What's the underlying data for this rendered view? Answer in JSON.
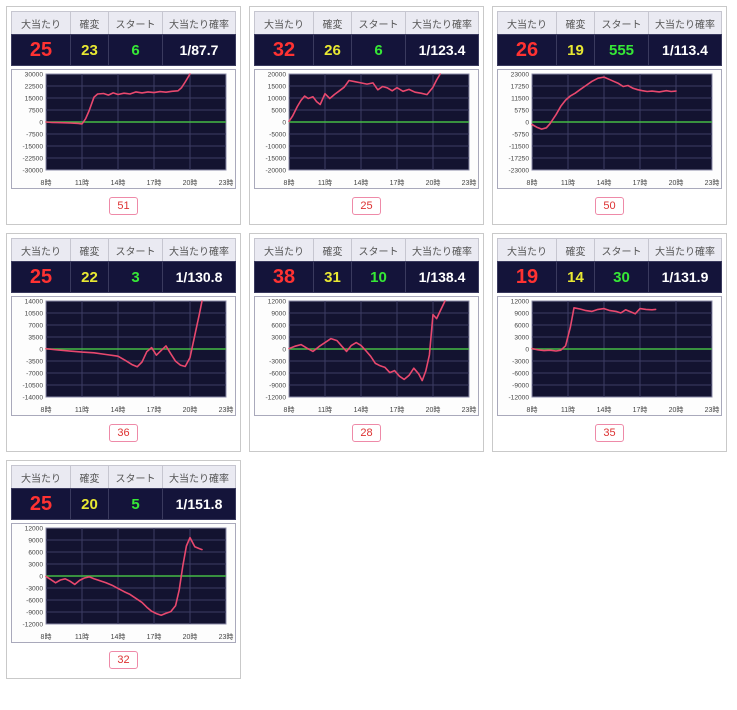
{
  "labels": {
    "jackpot": "大当たり",
    "kakuhen": "確変",
    "start": "スタート",
    "probability": "大当たり確率"
  },
  "x_ticks": [
    "8時",
    "11時",
    "14時",
    "17時",
    "20時",
    "23時"
  ],
  "colors": {
    "jackpot": "#ff3232",
    "kakuhen": "#e8e832",
    "start": "#36e836",
    "probability": "#ffffff",
    "dark_bg": "#14143a",
    "plot_bg": "#131330",
    "grid": "#3c3c64",
    "zero_line": "#44bb44",
    "line": "#e8486e",
    "badge_border": "#ee8aa8",
    "badge_text": "#dd3333"
  },
  "machines": [
    {
      "badge": "51",
      "jackpot": "25",
      "kakuhen": "23",
      "start": "6",
      "probability": "1/87.7"
    },
    {
      "badge": "25",
      "jackpot": "32",
      "kakuhen": "26",
      "start": "6",
      "probability": "1/123.4"
    },
    {
      "badge": "50",
      "jackpot": "26",
      "kakuhen": "19",
      "start": "555",
      "probability": "1/113.4"
    },
    {
      "badge": "36",
      "jackpot": "25",
      "kakuhen": "22",
      "start": "3",
      "probability": "1/130.8"
    },
    {
      "badge": "28",
      "jackpot": "38",
      "kakuhen": "31",
      "start": "10",
      "probability": "1/138.4"
    },
    {
      "badge": "35",
      "jackpot": "19",
      "kakuhen": "14",
      "start": "30",
      "probability": "1/131.9"
    },
    {
      "badge": "32",
      "jackpot": "25",
      "kakuhen": "20",
      "start": "5",
      "probability": "1/151.8"
    }
  ],
  "chart_data": [
    {
      "type": "line",
      "machine": "51",
      "x_range": [
        8,
        23
      ],
      "ylim": [
        -30000,
        30000
      ],
      "yticks": [
        30000,
        22500,
        15000,
        7500,
        0,
        -7500,
        -15000,
        -22500,
        -30000
      ],
      "series": [
        {
          "points": [
            [
              8,
              0
            ],
            [
              8.5,
              -300
            ],
            [
              9,
              -400
            ],
            [
              10,
              -600
            ],
            [
              10.7,
              -900
            ],
            [
              11,
              -1200
            ],
            [
              11.3,
              2000
            ],
            [
              11.6,
              7200
            ],
            [
              12,
              15500
            ],
            [
              12.3,
              17500
            ],
            [
              12.8,
              17800
            ],
            [
              13.2,
              16800
            ],
            [
              13.6,
              18200
            ],
            [
              14,
              17200
            ],
            [
              14.5,
              18000
            ],
            [
              15,
              17500
            ],
            [
              15.5,
              18800
            ],
            [
              16,
              18200
            ],
            [
              16.5,
              18800
            ],
            [
              17,
              18400
            ],
            [
              17.5,
              19000
            ],
            [
              18,
              18600
            ],
            [
              18.5,
              19200
            ],
            [
              19,
              19500
            ],
            [
              19.3,
              21500
            ],
            [
              19.6,
              25000
            ],
            [
              20,
              30000
            ]
          ]
        }
      ]
    },
    {
      "type": "line",
      "machine": "25",
      "x_range": [
        8,
        23
      ],
      "ylim": [
        -20000,
        20000
      ],
      "yticks": [
        20000,
        15000,
        10000,
        5000,
        0,
        -5000,
        -10000,
        -15000,
        -20000
      ],
      "series": [
        {
          "points": [
            [
              8,
              300
            ],
            [
              8.3,
              2500
            ],
            [
              8.7,
              6500
            ],
            [
              9,
              9000
            ],
            [
              9.3,
              10800
            ],
            [
              9.6,
              9800
            ],
            [
              10,
              10500
            ],
            [
              10.3,
              8500
            ],
            [
              10.6,
              7300
            ],
            [
              11,
              11800
            ],
            [
              11.4,
              9800
            ],
            [
              11.8,
              11500
            ],
            [
              12.2,
              13000
            ],
            [
              12.6,
              14500
            ],
            [
              13,
              17300
            ],
            [
              13.5,
              16800
            ],
            [
              14,
              16300
            ],
            [
              14.5,
              15800
            ],
            [
              15,
              16300
            ],
            [
              15.4,
              13400
            ],
            [
              15.8,
              14800
            ],
            [
              16.2,
              14200
            ],
            [
              16.6,
              13000
            ],
            [
              17,
              14300
            ],
            [
              17.5,
              12800
            ],
            [
              18,
              13600
            ],
            [
              18.5,
              12400
            ],
            [
              19,
              12000
            ],
            [
              19.5,
              11400
            ],
            [
              20,
              14500
            ],
            [
              20.3,
              17500
            ],
            [
              20.6,
              20000
            ]
          ]
        }
      ]
    },
    {
      "type": "line",
      "machine": "50",
      "x_range": [
        8,
        23
      ],
      "ylim": [
        -23000,
        23000
      ],
      "yticks": [
        23000,
        17250,
        11500,
        5750,
        0,
        -5750,
        -11500,
        -17250,
        -23000
      ],
      "series": [
        {
          "points": [
            [
              8,
              -1200
            ],
            [
              8.4,
              -2500
            ],
            [
              8.8,
              -3400
            ],
            [
              9.2,
              -2800
            ],
            [
              9.5,
              -800
            ],
            [
              10,
              3500
            ],
            [
              10.4,
              7500
            ],
            [
              10.8,
              10500
            ],
            [
              11.2,
              12500
            ],
            [
              11.6,
              13800
            ],
            [
              12,
              15500
            ],
            [
              12.5,
              17500
            ],
            [
              13,
              19500
            ],
            [
              13.5,
              21000
            ],
            [
              14,
              21500
            ],
            [
              14.4,
              20500
            ],
            [
              14.8,
              19500
            ],
            [
              15.2,
              18500
            ],
            [
              15.6,
              17000
            ],
            [
              16,
              17500
            ],
            [
              16.4,
              16200
            ],
            [
              16.8,
              15500
            ],
            [
              17.2,
              15000
            ],
            [
              17.6,
              14600
            ],
            [
              18,
              14800
            ],
            [
              18.6,
              14400
            ],
            [
              19.2,
              15000
            ],
            [
              19.6,
              14600
            ],
            [
              20,
              14800
            ]
          ]
        }
      ]
    },
    {
      "type": "line",
      "machine": "36",
      "x_range": [
        8,
        23
      ],
      "ylim": [
        -14000,
        14000
      ],
      "yticks": [
        14000,
        10500,
        7000,
        3500,
        0,
        -3500,
        -7000,
        -10500,
        -14000
      ],
      "series": [
        {
          "points": [
            [
              8,
              100
            ],
            [
              9,
              -300
            ],
            [
              10,
              -600
            ],
            [
              11,
              -900
            ],
            [
              12,
              -1100
            ],
            [
              13,
              -1600
            ],
            [
              14,
              -2100
            ],
            [
              14.6,
              -3300
            ],
            [
              15.2,
              -4600
            ],
            [
              15.6,
              -5200
            ],
            [
              16,
              -3800
            ],
            [
              16.4,
              -800
            ],
            [
              16.8,
              400
            ],
            [
              17.2,
              -1800
            ],
            [
              17.6,
              -400
            ],
            [
              18,
              900
            ],
            [
              18.4,
              -1400
            ],
            [
              18.8,
              -3600
            ],
            [
              19.2,
              -4700
            ],
            [
              19.6,
              -5100
            ],
            [
              20,
              -2500
            ],
            [
              20.4,
              4000
            ],
            [
              20.8,
              10500
            ],
            [
              21,
              14000
            ]
          ]
        }
      ]
    },
    {
      "type": "line",
      "machine": "28",
      "x_range": [
        8,
        23
      ],
      "ylim": [
        -12000,
        12000
      ],
      "yticks": [
        12000,
        9000,
        6000,
        3000,
        0,
        -3000,
        -6000,
        -9000,
        -12000
      ],
      "series": [
        {
          "points": [
            [
              8,
              100
            ],
            [
              8.5,
              700
            ],
            [
              9,
              1100
            ],
            [
              9.5,
              200
            ],
            [
              10,
              -600
            ],
            [
              10.5,
              600
            ],
            [
              11,
              1600
            ],
            [
              11.5,
              2600
            ],
            [
              12,
              2100
            ],
            [
              12.4,
              700
            ],
            [
              12.8,
              -600
            ],
            [
              13.2,
              900
            ],
            [
              13.6,
              1600
            ],
            [
              14,
              900
            ],
            [
              14.4,
              -400
            ],
            [
              14.8,
              -1800
            ],
            [
              15.2,
              -3600
            ],
            [
              15.6,
              -4200
            ],
            [
              16,
              -4600
            ],
            [
              16.4,
              -5900
            ],
            [
              16.8,
              -5400
            ],
            [
              17.2,
              -6800
            ],
            [
              17.6,
              -7600
            ],
            [
              18,
              -6600
            ],
            [
              18.4,
              -4800
            ],
            [
              18.8,
              -6200
            ],
            [
              19.1,
              -7900
            ],
            [
              19.4,
              -5500
            ],
            [
              19.7,
              -1500
            ],
            [
              20,
              8600
            ],
            [
              20.3,
              7600
            ],
            [
              20.6,
              9500
            ],
            [
              21,
              12000
            ]
          ]
        }
      ]
    },
    {
      "type": "line",
      "machine": "35",
      "x_range": [
        8,
        23
      ],
      "ylim": [
        -12000,
        12000
      ],
      "yticks": [
        12000,
        9000,
        6000,
        3000,
        0,
        -3000,
        -6000,
        -9000,
        -12000
      ],
      "series": [
        {
          "points": [
            [
              8,
              100
            ],
            [
              8.5,
              -200
            ],
            [
              9,
              -400
            ],
            [
              9.5,
              -300
            ],
            [
              10,
              -500
            ],
            [
              10.4,
              -300
            ],
            [
              10.8,
              800
            ],
            [
              11.2,
              5500
            ],
            [
              11.5,
              10300
            ],
            [
              12,
              10000
            ],
            [
              12.5,
              9600
            ],
            [
              13,
              9400
            ],
            [
              13.5,
              9900
            ],
            [
              14,
              10100
            ],
            [
              14.5,
              9600
            ],
            [
              15,
              9400
            ],
            [
              15.4,
              9000
            ],
            [
              15.8,
              9800
            ],
            [
              16.2,
              9300
            ],
            [
              16.6,
              8800
            ],
            [
              17,
              10100
            ],
            [
              17.5,
              9900
            ],
            [
              18,
              9800
            ],
            [
              18.3,
              9900
            ]
          ]
        }
      ]
    },
    {
      "type": "line",
      "machine": "32",
      "x_range": [
        8,
        23
      ],
      "ylim": [
        -12000,
        12000
      ],
      "yticks": [
        12000,
        9000,
        6000,
        3000,
        0,
        -3000,
        -6000,
        -9000,
        -12000
      ],
      "series": [
        {
          "points": [
            [
              8,
              -100
            ],
            [
              8.4,
              -900
            ],
            [
              8.8,
              -1700
            ],
            [
              9.2,
              -1000
            ],
            [
              9.6,
              -700
            ],
            [
              10,
              -1300
            ],
            [
              10.4,
              -2100
            ],
            [
              10.8,
              -1100
            ],
            [
              11.2,
              -500
            ],
            [
              11.6,
              -200
            ],
            [
              12,
              -700
            ],
            [
              12.5,
              -1200
            ],
            [
              13,
              -1700
            ],
            [
              13.5,
              -2300
            ],
            [
              14,
              -3100
            ],
            [
              14.5,
              -3900
            ],
            [
              15,
              -4600
            ],
            [
              15.5,
              -5600
            ],
            [
              16,
              -6600
            ],
            [
              16.4,
              -7800
            ],
            [
              16.8,
              -8800
            ],
            [
              17.2,
              -9400
            ],
            [
              17.6,
              -9800
            ],
            [
              18,
              -9300
            ],
            [
              18.4,
              -8900
            ],
            [
              18.8,
              -7400
            ],
            [
              19.1,
              -3500
            ],
            [
              19.4,
              2500
            ],
            [
              19.7,
              7500
            ],
            [
              20,
              9600
            ],
            [
              20.4,
              7300
            ],
            [
              20.8,
              6800
            ],
            [
              21,
              6600
            ]
          ]
        }
      ]
    }
  ]
}
